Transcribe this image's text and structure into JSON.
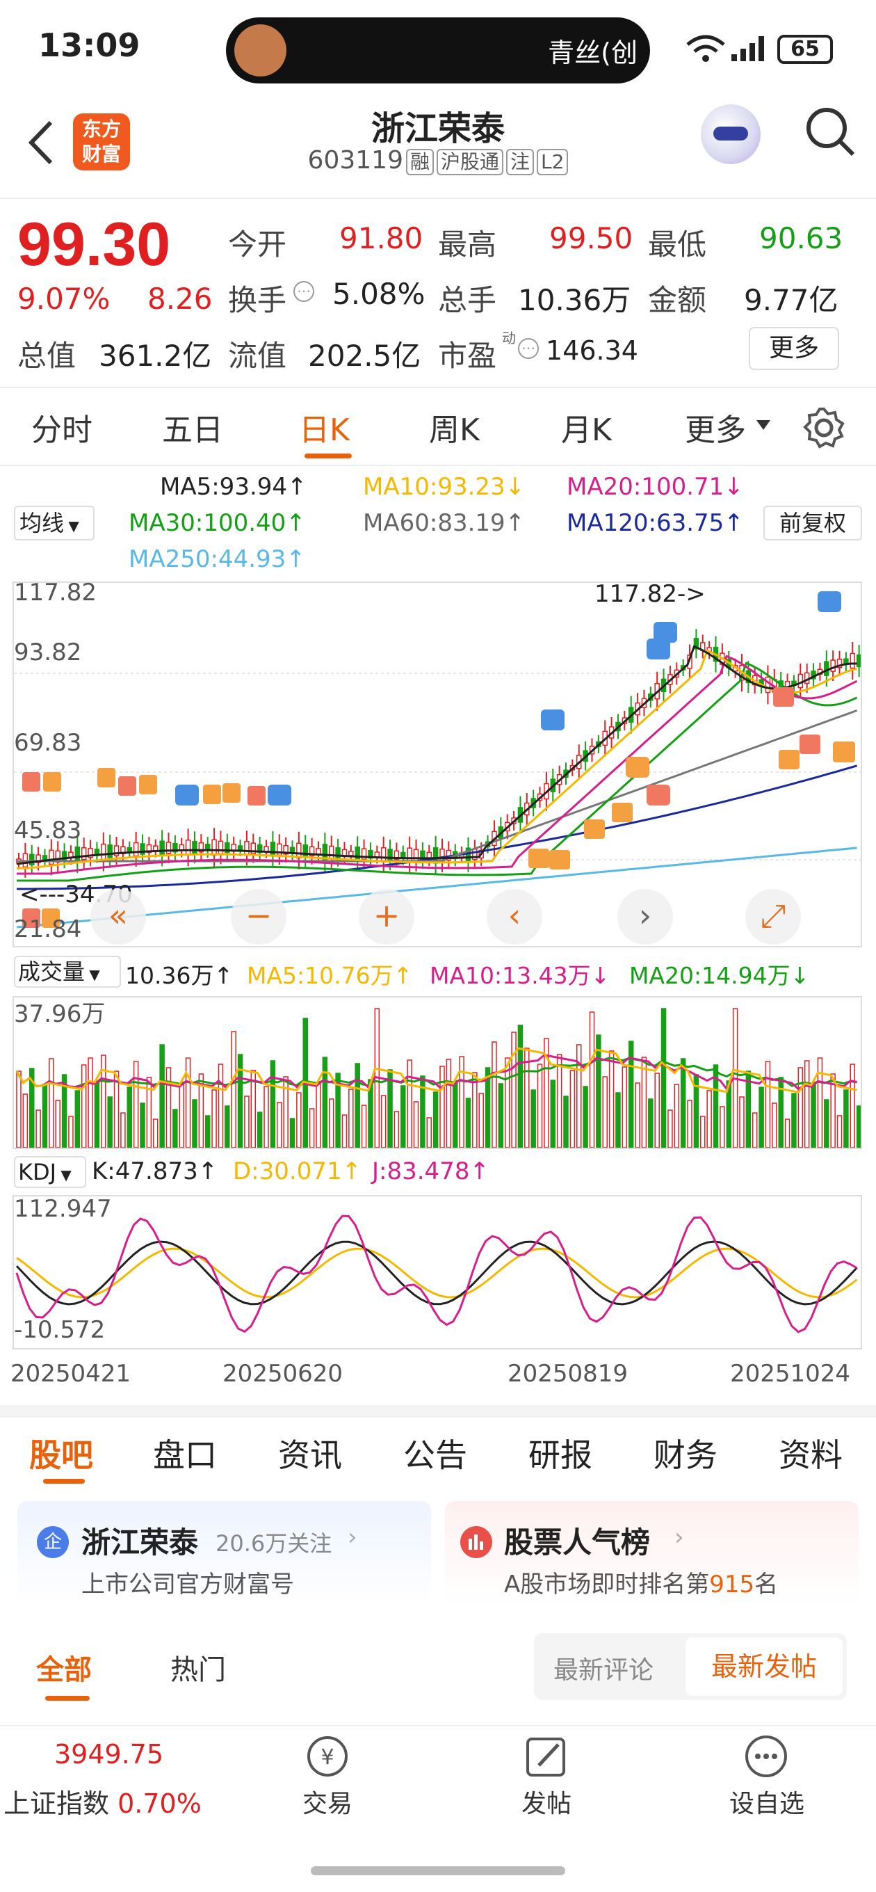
{
  "status": {
    "time": "13:09",
    "notification": "青丝(创",
    "battery": "65"
  },
  "header": {
    "title": "浙江荣泰",
    "code": "603119",
    "badges": [
      "融",
      "沪股通",
      "注",
      "L2"
    ],
    "app_logo": "东方财富"
  },
  "quote": {
    "price": "99.30",
    "change_pct": "9.07%",
    "change": "8.26",
    "open_label": "今开",
    "open": "91.80",
    "high_label": "最高",
    "high": "99.50",
    "low_label": "最低",
    "low": "90.63",
    "turnover_label": "换手",
    "turnover": "5.08%",
    "volume_label": "总手",
    "volume": "10.36万",
    "amount_label": "金额",
    "amount": "9.77亿",
    "mcap_label": "总值",
    "mcap": "361.2亿",
    "float_label": "流值",
    "float": "202.5亿",
    "pe_label": "市盈",
    "pe_sup": "动",
    "pe": "146.34",
    "more_label": "更多"
  },
  "tabs": {
    "items": [
      "分时",
      "五日",
      "日K",
      "周K",
      "月K",
      "更多"
    ],
    "active": "日K"
  },
  "ma": {
    "selector": "均线",
    "ma5": "MA5:93.94↑",
    "ma10": "MA10:93.23↓",
    "ma20": "MA20:100.71↓",
    "ma30": "MA30:100.40↑",
    "ma60": "MA60:83.19↑",
    "ma120": "MA120:63.75↑",
    "ma250": "MA250:44.93↑",
    "adjust": "前复权"
  },
  "price_chart": {
    "y_ticks": [
      "117.82",
      "93.82",
      "69.83",
      "45.83",
      "21.84"
    ],
    "high_note": "117.82->",
    "low_note": "<---34.70"
  },
  "volume": {
    "selector": "成交量",
    "value": "10.36万↑",
    "ma5": "MA5:10.76万↑",
    "ma10": "MA10:13.43万↓",
    "ma20": "MA20:14.94万↓",
    "ymax": "37.96万"
  },
  "kdj": {
    "selector": "KDJ",
    "k": "K:47.873↑",
    "d": "D:30.071↑",
    "j": "J:83.478↑",
    "ymax": "112.947",
    "ymin": "-10.572"
  },
  "dates": [
    "20250421",
    "20250620",
    "20250819",
    "20251024"
  ],
  "bottom_tabs": {
    "items": [
      "股吧",
      "盘口",
      "资讯",
      "公告",
      "研报",
      "财务",
      "资料"
    ],
    "active": "股吧"
  },
  "cards": {
    "left_title": "浙江荣泰",
    "left_count": "20.6万关注",
    "left_sub": "上市公司官方财富号",
    "right_title": "股票人气榜",
    "right_sub_pre": "A股市场即时排名第",
    "right_rank": "915",
    "right_sub_post": "名"
  },
  "filter": {
    "all": "全部",
    "hot": "热门",
    "latest_comment": "最新评论",
    "latest_post": "最新发帖"
  },
  "nav": {
    "index_value": "3949.75",
    "index_label": "上证指数",
    "index_pct": "0.70%",
    "trade": "交易",
    "post": "发帖",
    "watch": "设自选"
  },
  "colors": {
    "up": "#e02020",
    "down": "#17a017",
    "accent": "#e8620c"
  }
}
